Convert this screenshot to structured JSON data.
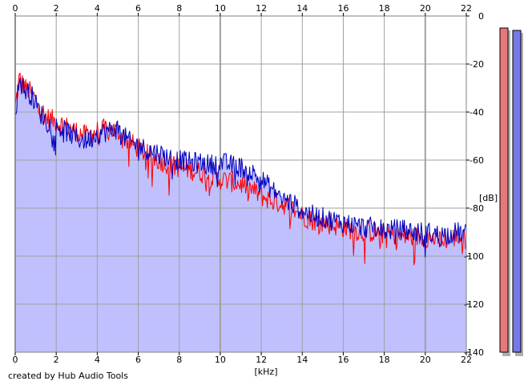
{
  "footer": {
    "credit": "created by Hub Audio Tools"
  },
  "chart_data": {
    "type": "area",
    "x_unit_label": "[kHz]",
    "y_unit_label": "[dB]",
    "xlim": [
      0,
      22
    ],
    "ylim": [
      -140,
      0
    ],
    "x_ticks": [
      0,
      2,
      4,
      6,
      8,
      10,
      12,
      14,
      16,
      18,
      20,
      22
    ],
    "y_ticks": [
      0,
      -20,
      -40,
      -60,
      -80,
      -100,
      -120,
      -140
    ],
    "grid": true,
    "fill_color": "#c0c0ff",
    "series": [
      {
        "color": "#ff0000",
        "x": [
          0,
          0.2,
          0.5,
          0.8,
          1.2,
          1.5,
          2,
          2.5,
          3,
          3.5,
          4,
          4.5,
          5,
          5.5,
          6,
          6.5,
          7,
          7.5,
          8,
          8.5,
          9,
          9.5,
          10,
          10.5,
          11,
          11.5,
          12,
          12.5,
          13,
          13.5,
          14,
          14.5,
          15,
          15.5,
          16,
          16.5,
          17,
          17.5,
          18,
          18.5,
          19,
          19.5,
          20,
          20.5,
          21,
          21.5,
          22
        ],
        "y": [
          -38,
          -26,
          -30,
          -32,
          -38,
          -42,
          -44,
          -46,
          -48,
          -50,
          -48,
          -47,
          -48,
          -52,
          -55,
          -58,
          -60,
          -62,
          -63,
          -64,
          -65,
          -67,
          -68,
          -69,
          -70,
          -72,
          -75,
          -77,
          -78,
          -80,
          -83,
          -85,
          -86,
          -87,
          -88,
          -89,
          -90,
          -90,
          -91,
          -91,
          -92,
          -92,
          -92,
          -93,
          -93,
          -92,
          -93
        ]
      },
      {
        "color": "#0000c0",
        "x": [
          0,
          0.2,
          0.5,
          0.8,
          1.2,
          1.5,
          2,
          2.5,
          3,
          3.5,
          4,
          4.5,
          5,
          5.5,
          6,
          6.5,
          7,
          7.5,
          8,
          8.5,
          9,
          9.5,
          10,
          10.5,
          11,
          11.5,
          12,
          12.5,
          13,
          13.5,
          14,
          14.5,
          15,
          15.5,
          16,
          16.5,
          17,
          17.5,
          18,
          18.5,
          19,
          19.5,
          20,
          20.5,
          21,
          21.5,
          22
        ],
        "y": [
          -40,
          -27,
          -31,
          -33,
          -40,
          -44,
          -46,
          -48,
          -51,
          -52,
          -49,
          -48,
          -47,
          -52,
          -54,
          -56,
          -57,
          -59,
          -60,
          -61,
          -61,
          -62,
          -61,
          -62,
          -63,
          -65,
          -68,
          -72,
          -76,
          -78,
          -81,
          -83,
          -84,
          -85,
          -86,
          -87,
          -88,
          -88,
          -89,
          -89,
          -89,
          -90,
          -90,
          -91,
          -91,
          -90,
          -91
        ]
      }
    ],
    "meters": [
      {
        "color": "#e87878",
        "level_db": -5
      },
      {
        "color": "#7878e8",
        "level_db": -6
      }
    ]
  }
}
